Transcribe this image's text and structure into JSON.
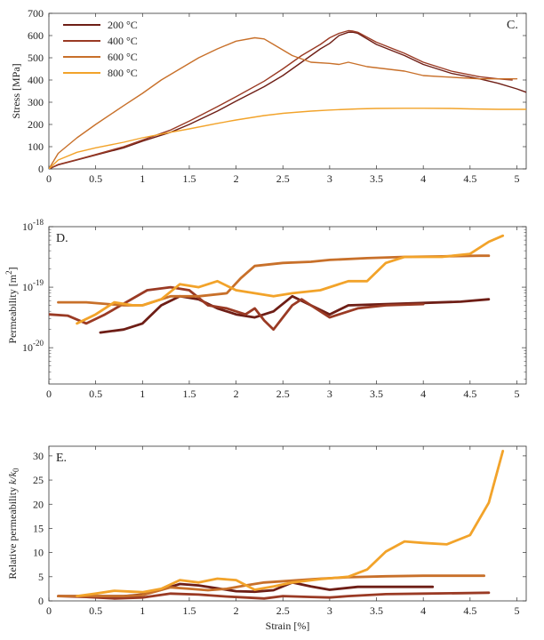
{
  "chart_data": [
    {
      "panel": "C.",
      "type": "line",
      "ylabel": "Stress [MPa]",
      "xlabel": "",
      "xlim": [
        0,
        5.1
      ],
      "ylim": [
        0,
        700
      ],
      "xticks": [
        "0",
        "0.5",
        "1",
        "1.5",
        "2",
        "2.5",
        "3",
        "3.5",
        "4",
        "4.5",
        "5"
      ],
      "yticks": [
        "0",
        "100",
        "200",
        "300",
        "400",
        "500",
        "600",
        "700"
      ],
      "legend_position": "top-left",
      "series": [
        {
          "name": "200 °C",
          "color": "#6e1e16",
          "x": [
            0,
            0.1,
            0.3,
            0.5,
            0.8,
            1.0,
            1.3,
            1.5,
            1.8,
            2.0,
            2.3,
            2.5,
            2.7,
            2.9,
            3.0,
            3.1,
            3.2,
            3.25,
            3.3,
            3.5,
            3.8,
            4.0,
            4.3,
            4.6,
            4.8,
            5.0,
            5.1
          ],
          "y": [
            0,
            18,
            40,
            62,
            95,
            125,
            165,
            200,
            260,
            305,
            370,
            420,
            480,
            540,
            565,
            600,
            615,
            615,
            610,
            560,
            510,
            470,
            430,
            405,
            385,
            360,
            345
          ]
        },
        {
          "name": "400 °C",
          "color": "#9a3a24",
          "x": [
            0,
            0.1,
            0.3,
            0.5,
            0.8,
            1.0,
            1.3,
            1.5,
            1.8,
            2.0,
            2.3,
            2.5,
            2.7,
            2.9,
            3.0,
            3.1,
            3.2,
            3.25,
            3.3,
            3.5,
            3.8,
            4.0,
            4.3,
            4.6,
            4.8,
            4.95
          ],
          "y": [
            0,
            20,
            42,
            65,
            100,
            130,
            175,
            215,
            280,
            325,
            395,
            450,
            510,
            560,
            590,
            610,
            622,
            620,
            615,
            570,
            520,
            480,
            440,
            415,
            405,
            400
          ]
        },
        {
          "name": "600 °C",
          "color": "#c8702a",
          "x": [
            0,
            0.1,
            0.3,
            0.5,
            0.8,
            1.0,
            1.2,
            1.4,
            1.6,
            1.8,
            2.0,
            2.2,
            2.3,
            2.4,
            2.6,
            2.8,
            3.0,
            3.1,
            3.2,
            3.4,
            3.6,
            3.8,
            4.0,
            4.2,
            4.4,
            4.6,
            4.8,
            5.0
          ],
          "y": [
            0,
            70,
            140,
            200,
            285,
            340,
            400,
            450,
            500,
            540,
            575,
            590,
            585,
            560,
            510,
            480,
            475,
            470,
            480,
            460,
            450,
            440,
            420,
            415,
            410,
            405,
            405,
            405
          ]
        },
        {
          "name": "800 °C",
          "color": "#f2a32a",
          "x": [
            0,
            0.1,
            0.3,
            0.5,
            0.8,
            1.0,
            1.3,
            1.5,
            1.8,
            2.0,
            2.3,
            2.5,
            2.8,
            3.0,
            3.3,
            3.5,
            3.8,
            4.0,
            4.3,
            4.5,
            4.8,
            5.0,
            5.1
          ],
          "y": [
            0,
            40,
            75,
            95,
            120,
            140,
            165,
            180,
            205,
            220,
            240,
            250,
            260,
            265,
            270,
            272,
            273,
            273,
            272,
            270,
            268,
            268,
            268
          ]
        }
      ]
    },
    {
      "panel": "D.",
      "type": "line",
      "ylabel": "Permeability [m²]",
      "xlabel": "",
      "log_y": true,
      "xlim": [
        0,
        5.1
      ],
      "ylim_log10": [
        -20.6,
        -18
      ],
      "xticks": [
        "0",
        "0.5",
        "1",
        "1.5",
        "2",
        "2.5",
        "3",
        "3.5",
        "4",
        "4.5",
        "5"
      ],
      "yticks": [
        {
          "base": "10",
          "exp": "-18",
          "log": -18
        },
        {
          "base": "10",
          "exp": "-19",
          "log": -19
        },
        {
          "base": "10",
          "exp": "-20",
          "log": -20
        }
      ],
      "series": [
        {
          "color": "#6e1e16",
          "log10": true,
          "x": [
            0.55,
            0.8,
            1.0,
            1.2,
            1.4,
            1.6,
            1.8,
            2.0,
            2.2,
            2.4,
            2.6,
            2.8,
            3.0,
            3.2,
            3.6,
            4.0,
            4.4,
            4.7
          ],
          "y": [
            -19.75,
            -19.7,
            -19.6,
            -19.3,
            -19.15,
            -19.2,
            -19.35,
            -19.45,
            -19.5,
            -19.4,
            -19.15,
            -19.3,
            -19.45,
            -19.3,
            -19.28,
            -19.26,
            -19.24,
            -19.2
          ]
        },
        {
          "color": "#9a3a24",
          "log10": true,
          "x": [
            0,
            0.2,
            0.4,
            0.6,
            1.05,
            1.3,
            1.5,
            1.7,
            1.9,
            2.1,
            2.2,
            2.3,
            2.4,
            2.5,
            2.6,
            2.7,
            2.8,
            3.0,
            3.1,
            3.3,
            3.6,
            4.0
          ],
          "y": [
            -19.45,
            -19.47,
            -19.6,
            -19.45,
            -19.05,
            -19.0,
            -19.05,
            -19.3,
            -19.35,
            -19.45,
            -19.35,
            -19.55,
            -19.7,
            -19.5,
            -19.3,
            -19.2,
            -19.3,
            -19.5,
            -19.45,
            -19.35,
            -19.3,
            -19.28
          ]
        },
        {
          "color": "#c8702a",
          "log10": true,
          "x": [
            0.1,
            0.4,
            0.8,
            1.0,
            1.3,
            1.6,
            1.9,
            2.05,
            2.2,
            2.5,
            2.8,
            3.0,
            3.4,
            3.8,
            4.2,
            4.6,
            4.7
          ],
          "y": [
            -19.25,
            -19.25,
            -19.3,
            -19.3,
            -19.15,
            -19.15,
            -19.1,
            -18.85,
            -18.65,
            -18.6,
            -18.58,
            -18.55,
            -18.52,
            -18.5,
            -18.49,
            -18.48,
            -18.48
          ]
        },
        {
          "color": "#f2a32a",
          "log10": true,
          "x": [
            0.3,
            0.5,
            0.7,
            0.9,
            1.0,
            1.2,
            1.4,
            1.6,
            1.8,
            2.0,
            2.2,
            2.4,
            2.6,
            2.9,
            3.2,
            3.4,
            3.6,
            3.8,
            4.0,
            4.2,
            4.5,
            4.7,
            4.85
          ],
          "y": [
            -19.6,
            -19.45,
            -19.25,
            -19.3,
            -19.3,
            -19.2,
            -18.95,
            -19.0,
            -18.9,
            -19.05,
            -19.1,
            -19.15,
            -19.1,
            -19.05,
            -18.9,
            -18.9,
            -18.6,
            -18.5,
            -18.5,
            -18.5,
            -18.45,
            -18.25,
            -18.15
          ]
        }
      ]
    },
    {
      "panel": "E.",
      "type": "line",
      "ylabel": "Relative permeability k/k₀",
      "xlabel": "Strain [%]",
      "xlim": [
        0,
        5.1
      ],
      "ylim": [
        0,
        32
      ],
      "xticks": [
        "0",
        "0.5",
        "1",
        "1.5",
        "2",
        "2.5",
        "3",
        "3.5",
        "4",
        "4.5",
        "5"
      ],
      "yticks": [
        "0",
        "5",
        "10",
        "15",
        "20",
        "25",
        "30"
      ],
      "series": [
        {
          "color": "#6e1e16",
          "x": [
            0.1,
            0.5,
            0.8,
            1.0,
            1.2,
            1.4,
            1.6,
            1.8,
            2.0,
            2.2,
            2.4,
            2.6,
            2.8,
            3.0,
            3.3,
            3.6,
            4.0,
            4.1
          ],
          "y": [
            1.0,
            1.0,
            1.0,
            1.3,
            2.3,
            3.5,
            3.2,
            2.6,
            2.0,
            1.9,
            2.2,
            3.8,
            3.0,
            2.3,
            2.9,
            2.9,
            2.9,
            2.9
          ]
        },
        {
          "color": "#9a3a24",
          "x": [
            0.1,
            0.4,
            0.7,
            1.0,
            1.3,
            1.6,
            1.9,
            2.1,
            2.3,
            2.5,
            2.8,
            3.0,
            3.2,
            3.6,
            4.0,
            4.4,
            4.7
          ],
          "y": [
            1.0,
            0.8,
            0.5,
            0.7,
            1.5,
            1.3,
            0.9,
            0.7,
            0.5,
            1.0,
            0.8,
            0.7,
            1.0,
            1.4,
            1.5,
            1.6,
            1.7
          ]
        },
        {
          "color": "#c8702a",
          "x": [
            0.1,
            0.4,
            0.8,
            1.0,
            1.3,
            1.5,
            1.7,
            1.9,
            2.1,
            2.3,
            2.6,
            2.9,
            3.2,
            3.6,
            4.0,
            4.3,
            4.65
          ],
          "y": [
            1.0,
            1.0,
            1.0,
            1.2,
            2.8,
            2.5,
            2.2,
            2.5,
            3.2,
            3.8,
            4.2,
            4.6,
            4.9,
            5.1,
            5.2,
            5.2,
            5.2
          ]
        },
        {
          "color": "#f2a32a",
          "x": [
            0.3,
            0.5,
            0.7,
            0.9,
            1.0,
            1.2,
            1.4,
            1.6,
            1.8,
            2.0,
            2.2,
            2.4,
            2.6,
            2.9,
            3.2,
            3.4,
            3.6,
            3.8,
            4.0,
            4.25,
            4.5,
            4.7,
            4.85
          ],
          "y": [
            1.0,
            1.5,
            2.1,
            1.9,
            1.8,
            2.5,
            4.3,
            3.8,
            4.6,
            4.3,
            2.3,
            3.0,
            3.8,
            4.5,
            5.0,
            6.5,
            10.2,
            12.3,
            12.0,
            11.7,
            13.6,
            20.3,
            31.0
          ]
        }
      ]
    }
  ]
}
